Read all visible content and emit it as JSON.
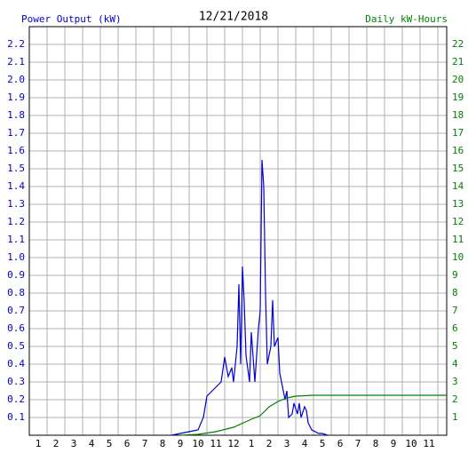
{
  "chart_data": {
    "type": "line",
    "title": "12/21/2018",
    "xlim": [
      0.5,
      24
    ],
    "xticks": [
      1,
      2,
      3,
      4,
      5,
      6,
      7,
      8,
      9,
      10,
      11,
      12,
      {
        "value": 13,
        "label": "1"
      },
      {
        "value": 14,
        "label": "2"
      },
      {
        "value": 15,
        "label": "3"
      },
      {
        "value": 16,
        "label": "4"
      },
      {
        "value": 17,
        "label": "5"
      },
      {
        "value": 18,
        "label": "6"
      },
      {
        "value": 19,
        "label": "7"
      },
      {
        "value": 20,
        "label": "8"
      },
      {
        "value": 21,
        "label": "9"
      },
      {
        "value": 22,
        "label": "10"
      },
      {
        "value": 23,
        "label": "11"
      }
    ],
    "ylim": [
      0,
      2.3
    ],
    "yticks": [
      0.1,
      0.2,
      0.3,
      0.4,
      0.5,
      0.6,
      0.7,
      0.8,
      0.9,
      {
        "value": 1,
        "label": "1.0"
      },
      1.1,
      1.2,
      1.3,
      1.4,
      1.5,
      1.6,
      1.7,
      1.8,
      1.9,
      {
        "value": 2,
        "label": "2.0"
      },
      2.1,
      2.2
    ],
    "y2lim": [
      0,
      23
    ],
    "y2ticks": [
      1,
      2,
      3,
      4,
      5,
      6,
      7,
      8,
      9,
      10,
      11,
      12,
      13,
      14,
      15,
      16,
      17,
      18,
      19,
      20,
      21,
      22
    ],
    "grid": true,
    "series": [
      {
        "name": "Power Output (kW)",
        "color": "#0000cc",
        "x": [
          8.5,
          9,
          9.5,
          10,
          10.3,
          10.5,
          10.7,
          11,
          11.3,
          11.5,
          11.7,
          11.9,
          12,
          12.2,
          12.3,
          12.4,
          12.5,
          12.6,
          12.7,
          12.9,
          13,
          13.2,
          13.4,
          13.5,
          13.6,
          13.7,
          13.8,
          13.9,
          14.1,
          14.2,
          14.3,
          14.5,
          14.6,
          14.8,
          14.9,
          15,
          15.1,
          15.3,
          15.4,
          15.5,
          15.6,
          15.7,
          15.8,
          16,
          16.1,
          16.2,
          16.4,
          16.8,
          17,
          17.3
        ],
        "values": [
          0,
          0.01,
          0.02,
          0.03,
          0.1,
          0.22,
          0.24,
          0.27,
          0.3,
          0.44,
          0.33,
          0.38,
          0.3,
          0.5,
          0.85,
          0.4,
          0.95,
          0.75,
          0.45,
          0.3,
          0.58,
          0.3,
          0.6,
          0.7,
          1.55,
          1.4,
          0.8,
          0.4,
          0.5,
          0.76,
          0.5,
          0.55,
          0.35,
          0.25,
          0.2,
          0.25,
          0.1,
          0.12,
          0.18,
          0.15,
          0.12,
          0.18,
          0.1,
          0.16,
          0.14,
          0.07,
          0.03,
          0.01,
          0.01,
          0
        ]
      },
      {
        "name": "Daily kW-Hours",
        "color": "#008000",
        "axis": "y2",
        "x": [
          9,
          10,
          11,
          12,
          13,
          13.5,
          14,
          14.5,
          15,
          15.5,
          16.5,
          24
        ],
        "values": [
          0,
          0.05,
          0.2,
          0.45,
          0.9,
          1.1,
          1.6,
          1.9,
          2.1,
          2.2,
          2.25,
          2.25
        ]
      }
    ]
  }
}
